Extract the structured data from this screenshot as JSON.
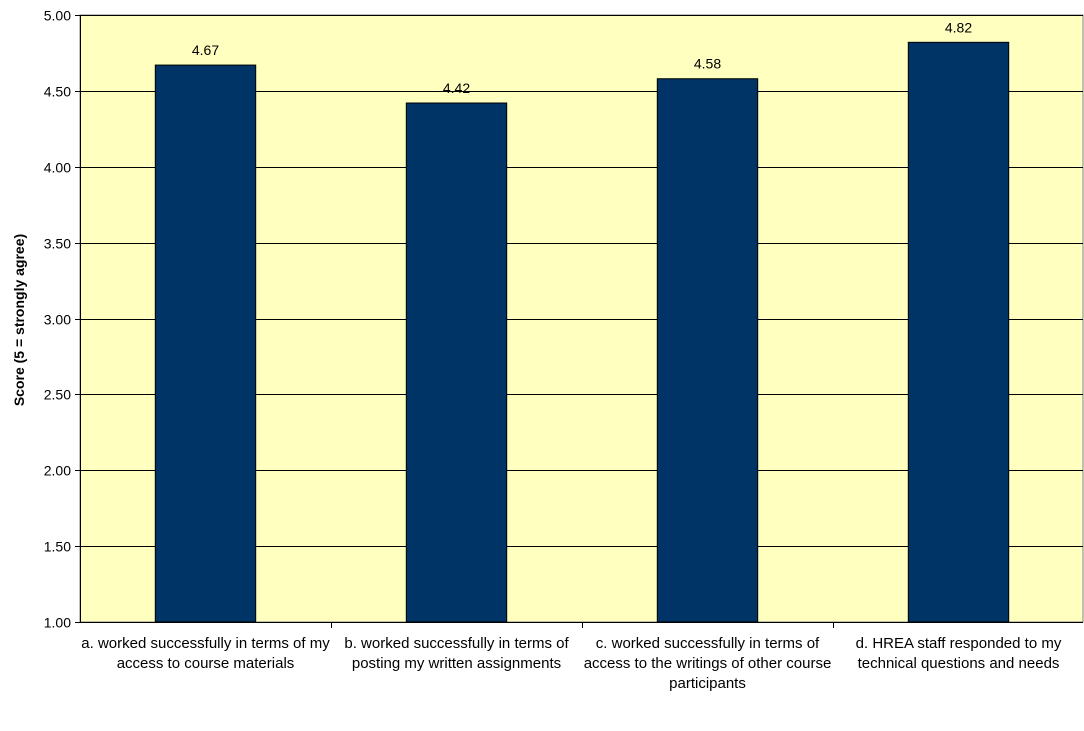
{
  "chart_data": {
    "type": "bar",
    "ylabel": "Score (5 = strongly agree)",
    "xlabel": "",
    "title": "",
    "ylim": [
      1.0,
      5.0
    ],
    "yticks": [
      "1.00",
      "1.50",
      "2.00",
      "2.50",
      "3.00",
      "3.50",
      "4.00",
      "4.50",
      "5.00"
    ],
    "categories": [
      "a. worked successfully in terms of my access to course materials",
      "b. worked successfully in terms of posting my written assignments",
      "c. worked successfully in terms of access to the writings of other course participants",
      "d. HREA staff responded to my technical questions and needs"
    ],
    "values": [
      4.67,
      4.42,
      4.58,
      4.82
    ],
    "value_labels": [
      "4.67",
      "4.42",
      "4.58",
      "4.82"
    ],
    "grid": true,
    "legend": "none",
    "colors": {
      "plot_background": "#FFFFC0",
      "bar_fill": "#003366",
      "gridline": "#000000"
    }
  }
}
